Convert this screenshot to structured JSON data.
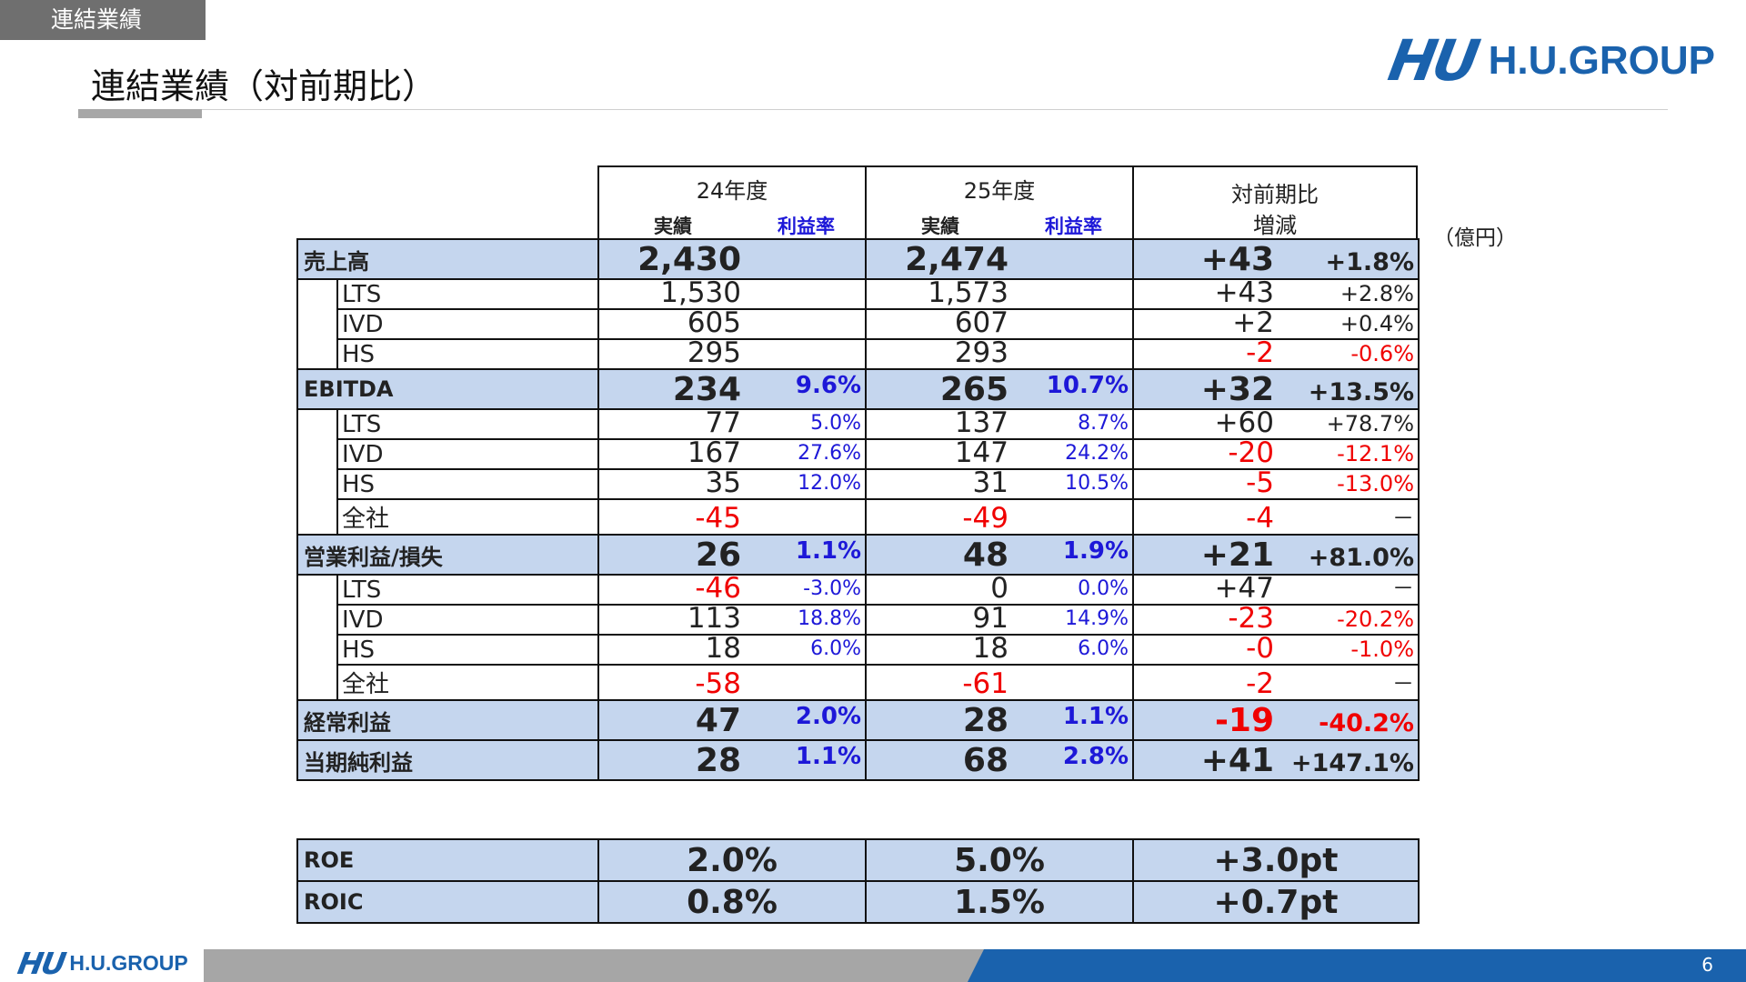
{
  "section_tab": "連結業績",
  "page_title": "連結業績（対前期比）",
  "brand": {
    "mark": "HU",
    "word": "H.U.GROUP",
    "color": "#1a62ad"
  },
  "unit": "（億円）",
  "page_number": "6",
  "header": {
    "fy24": {
      "year": "24年度",
      "actual": "実績",
      "margin": "利益率"
    },
    "fy25": {
      "year": "25年度",
      "actual": "実績",
      "margin": "利益率"
    },
    "compare": {
      "line1": "対前期比",
      "line2": "増減"
    }
  },
  "rows": [
    {
      "label": "売上高",
      "type": "section",
      "fy24": "2,430",
      "fy24_margin": "",
      "fy25": "2,474",
      "fy25_margin": "",
      "diff": "+43",
      "diff_pct": "+1.8%"
    },
    {
      "label": "LTS",
      "type": "sub",
      "fy24": "1,530",
      "fy24_margin": "",
      "fy25": "1,573",
      "fy25_margin": "",
      "diff": "+43",
      "diff_pct": "+2.8%"
    },
    {
      "label": "IVD",
      "type": "sub",
      "fy24": "605",
      "fy24_margin": "",
      "fy25": "607",
      "fy25_margin": "",
      "diff": "+2",
      "diff_pct": "+0.4%"
    },
    {
      "label": "HS",
      "type": "sub",
      "fy24": "295",
      "fy24_margin": "",
      "fy25": "293",
      "fy25_margin": "",
      "diff": "-2",
      "diff_pct": "-0.6%"
    },
    {
      "label": "EBITDA",
      "type": "section",
      "fy24": "234",
      "fy24_margin": "9.6%",
      "fy25": "265",
      "fy25_margin": "10.7%",
      "diff": "+32",
      "diff_pct": "+13.5%"
    },
    {
      "label": "LTS",
      "type": "sub",
      "fy24": "77",
      "fy24_margin": "5.0%",
      "fy25": "137",
      "fy25_margin": "8.7%",
      "diff": "+60",
      "diff_pct": "+78.7%"
    },
    {
      "label": "IVD",
      "type": "sub",
      "fy24": "167",
      "fy24_margin": "27.6%",
      "fy25": "147",
      "fy25_margin": "24.2%",
      "diff": "-20",
      "diff_pct": "-12.1%"
    },
    {
      "label": "HS",
      "type": "sub",
      "fy24": "35",
      "fy24_margin": "12.0%",
      "fy25": "31",
      "fy25_margin": "10.5%",
      "diff": "-5",
      "diff_pct": "-13.0%"
    },
    {
      "label": "全社",
      "type": "sub",
      "fy24": "-45",
      "fy24_margin": "",
      "fy25": "-49",
      "fy25_margin": "",
      "diff": "-4",
      "diff_pct": "－"
    },
    {
      "label": "営業利益/損失",
      "type": "section",
      "fy24": "26",
      "fy24_margin": "1.1%",
      "fy25": "48",
      "fy25_margin": "1.9%",
      "diff": "+21",
      "diff_pct": "+81.0%"
    },
    {
      "label": "LTS",
      "type": "sub",
      "fy24": "-46",
      "fy24_margin": "-3.0%",
      "fy25": "0",
      "fy25_margin": "0.0%",
      "diff": "+47",
      "diff_pct": "－"
    },
    {
      "label": "IVD",
      "type": "sub",
      "fy24": "113",
      "fy24_margin": "18.8%",
      "fy25": "91",
      "fy25_margin": "14.9%",
      "diff": "-23",
      "diff_pct": "-20.2%"
    },
    {
      "label": "HS",
      "type": "sub",
      "fy24": "18",
      "fy24_margin": "6.0%",
      "fy25": "18",
      "fy25_margin": "6.0%",
      "diff": "-0",
      "diff_pct": "-1.0%"
    },
    {
      "label": "全社",
      "type": "sub",
      "fy24": "-58",
      "fy24_margin": "",
      "fy25": "-61",
      "fy25_margin": "",
      "diff": "-2",
      "diff_pct": "－"
    },
    {
      "label": "経常利益",
      "type": "section",
      "fy24": "47",
      "fy24_margin": "2.0%",
      "fy25": "28",
      "fy25_margin": "1.1%",
      "diff": "-19",
      "diff_pct": "-40.2%"
    },
    {
      "label": "当期純利益",
      "type": "section",
      "fy24": "28",
      "fy24_margin": "1.1%",
      "fy25": "68",
      "fy25_margin": "2.8%",
      "diff": "+41",
      "diff_pct": "+147.1%"
    }
  ],
  "ratios": [
    {
      "label": "ROE",
      "fy24": "2.0%",
      "fy25": "5.0%",
      "diff": "+3.0pt"
    },
    {
      "label": "ROIC",
      "fy24": "0.8%",
      "fy25": "1.5%",
      "diff": "+0.7pt"
    }
  ],
  "colors": {
    "negative": "#f00000",
    "margin": "#1d18d8",
    "section_fill": "#c5d6ee",
    "footer_grey": "#a6a6a6",
    "footer_blue": "#1a62ad"
  }
}
